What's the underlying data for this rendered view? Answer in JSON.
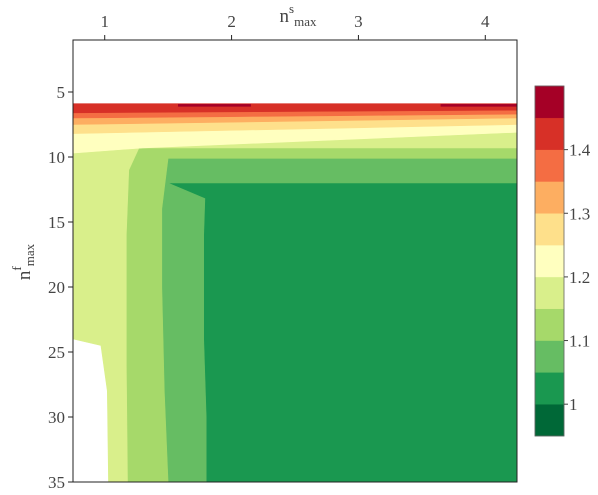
{
  "chart_data": {
    "type": "heatmap",
    "subtype": "filled-contour",
    "x_axis": {
      "label_main": "n",
      "label_sup": "s",
      "label_sub": "max",
      "position": "top",
      "range": [
        0.75,
        4.25
      ],
      "ticks": [
        1,
        2,
        3,
        4
      ],
      "tick_labels": [
        "1",
        "2",
        "3",
        "4"
      ]
    },
    "y_axis": {
      "label_main": "n",
      "label_sup": "f",
      "label_sub": "max",
      "position": "left",
      "inverted": true,
      "range": [
        1,
        35
      ],
      "ticks": [
        5,
        10,
        15,
        20,
        25,
        30,
        35
      ],
      "tick_labels": [
        "5",
        "10",
        "15",
        "20",
        "25",
        "30",
        "35"
      ]
    },
    "colorbar": {
      "position": "right",
      "levels": [
        0.95,
        1.0,
        1.05,
        1.1,
        1.15,
        1.2,
        1.25,
        1.3,
        1.35,
        1.4,
        1.45,
        1.5
      ],
      "colors": [
        "#006837",
        "#1a9850",
        "#66bd63",
        "#a6d96a",
        "#d9ef8b",
        "#ffffbf",
        "#fee08b",
        "#fdae61",
        "#f46d43",
        "#d73027",
        "#a50026"
      ],
      "ticks": [
        1.0,
        1.1,
        1.2,
        1.3,
        1.4
      ],
      "tick_labels": [
        "1",
        "1.1",
        "1.2",
        "1.3",
        "1.4"
      ]
    },
    "regions": [
      {
        "band": 1,
        "value_range": [
          1.0,
          1.05
        ],
        "polygon": [
          [
            1.5,
            12
          ],
          [
            4.25,
            12
          ],
          [
            4.25,
            35
          ],
          [
            1.8,
            35
          ],
          [
            1.8,
            30
          ],
          [
            1.78,
            24
          ],
          [
            1.78,
            16
          ],
          [
            1.79,
            13.2
          ],
          [
            1.5,
            12
          ]
        ]
      },
      {
        "band": 2,
        "value_range": [
          1.05,
          1.1
        ],
        "polygon": [
          [
            1.5,
            10.1
          ],
          [
            4.25,
            10.1
          ],
          [
            4.25,
            12
          ],
          [
            1.5,
            12
          ],
          [
            1.79,
            13.2
          ],
          [
            1.78,
            16
          ],
          [
            1.78,
            24
          ],
          [
            1.8,
            30
          ],
          [
            1.8,
            35
          ],
          [
            1.5,
            35
          ],
          [
            1.47,
            28
          ],
          [
            1.45,
            20
          ],
          [
            1.45,
            14
          ],
          [
            1.5,
            10.1
          ]
        ]
      },
      {
        "band": 3,
        "value_range": [
          1.1,
          1.15
        ],
        "polygon": [
          [
            1.27,
            9.3
          ],
          [
            4.25,
            9.3
          ],
          [
            4.25,
            10.1
          ],
          [
            1.5,
            10.1
          ],
          [
            1.45,
            14
          ],
          [
            1.45,
            20
          ],
          [
            1.47,
            28
          ],
          [
            1.5,
            35
          ],
          [
            1.18,
            35
          ],
          [
            1.17,
            26
          ],
          [
            1.17,
            16
          ],
          [
            1.19,
            11
          ],
          [
            1.27,
            9.3
          ]
        ]
      },
      {
        "band": 4,
        "value_range": [
          1.15,
          1.2
        ],
        "polygon": [
          [
            0.75,
            9.7
          ],
          [
            1.3,
            9.3
          ],
          [
            4.25,
            8.1
          ],
          [
            4.25,
            9.3
          ],
          [
            1.27,
            9.3
          ],
          [
            1.19,
            11
          ],
          [
            1.17,
            16
          ],
          [
            1.17,
            26
          ],
          [
            1.18,
            35
          ],
          [
            1.03,
            35
          ],
          [
            1.02,
            28
          ],
          [
            0.97,
            24.5
          ],
          [
            0.75,
            24
          ],
          [
            0.75,
            9.7
          ]
        ]
      },
      {
        "band": 5,
        "value_range": [
          1.2,
          1.25
        ],
        "polygon": [
          [
            0.75,
            8.2
          ],
          [
            4.25,
            7.5
          ],
          [
            4.25,
            8.1
          ],
          [
            1.3,
            9.3
          ],
          [
            0.75,
            9.7
          ],
          [
            0.75,
            8.2
          ]
        ]
      },
      {
        "band": 6,
        "value_range": [
          1.25,
          1.3
        ],
        "polygon": [
          [
            0.75,
            7.5
          ],
          [
            4.25,
            7.0
          ],
          [
            4.25,
            7.5
          ],
          [
            0.75,
            8.2
          ],
          [
            0.75,
            7.5
          ]
        ]
      },
      {
        "band": 7,
        "value_range": [
          1.3,
          1.35
        ],
        "polygon": [
          [
            0.75,
            7.0
          ],
          [
            4.25,
            6.7
          ],
          [
            4.25,
            7.0
          ],
          [
            0.75,
            7.5
          ],
          [
            0.75,
            7.0
          ]
        ]
      },
      {
        "band": 8,
        "value_range": [
          1.35,
          1.4
        ],
        "polygon": [
          [
            0.75,
            6.6
          ],
          [
            4.25,
            6.4
          ],
          [
            4.25,
            6.7
          ],
          [
            0.75,
            7.0
          ],
          [
            0.75,
            6.6
          ]
        ]
      },
      {
        "band": 9,
        "value_range": [
          1.4,
          1.45
        ],
        "polygon": [
          [
            0.75,
            5.9
          ],
          [
            4.25,
            5.9
          ],
          [
            4.25,
            6.4
          ],
          [
            0.75,
            6.6
          ],
          [
            0.75,
            5.9
          ]
        ]
      },
      {
        "band": 10,
        "value_range": [
          1.45,
          1.5
        ],
        "polygon": [
          [
            1.58,
            5.95
          ],
          [
            2.15,
            5.95
          ],
          [
            2.15,
            6.1
          ],
          [
            1.58,
            6.1
          ],
          [
            1.58,
            5.95
          ]
        ]
      },
      {
        "band": 10,
        "value_range": [
          1.45,
          1.5
        ],
        "polygon": [
          [
            3.65,
            5.95
          ],
          [
            4.25,
            5.95
          ],
          [
            4.25,
            6.1
          ],
          [
            3.65,
            6.1
          ],
          [
            3.65,
            5.95
          ]
        ]
      }
    ]
  }
}
